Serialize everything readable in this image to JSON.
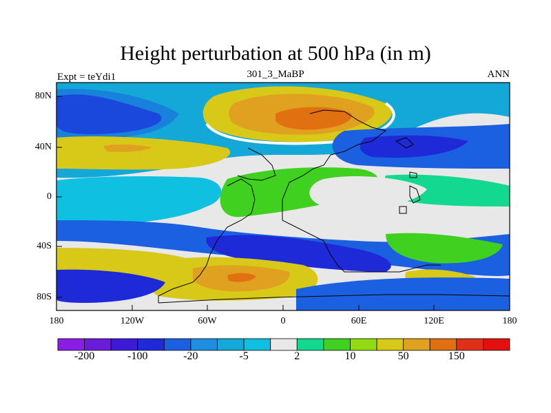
{
  "title": "Height perturbation at 500 hPa (in m)",
  "left_label": "Expt = teYdi1",
  "center_label": "301_3_MaBP",
  "right_label": "ANN",
  "y_ticks": [
    "80N",
    "40N",
    "0",
    "40S",
    "80S"
  ],
  "x_ticks": [
    "180",
    "120W",
    "60W",
    "0",
    "60E",
    "120E",
    "180"
  ],
  "colorbar": {
    "colors": [
      "#8a1ee6",
      "#6a1cd8",
      "#3c1ad6",
      "#1e2ad8",
      "#1a60e0",
      "#1e8ee0",
      "#14a8d8",
      "#10c0e0",
      "#e8e8e8",
      "#12d890",
      "#40d020",
      "#90dc10",
      "#d8c818",
      "#e0a020",
      "#e07010",
      "#e03018",
      "#e41010"
    ],
    "labels": [
      {
        "text": "-200",
        "after_box": 1
      },
      {
        "text": "-100",
        "after_box": 3
      },
      {
        "text": "-20",
        "after_box": 5
      },
      {
        "text": "-5",
        "after_box": 7
      },
      {
        "text": "2",
        "after_box": 9
      },
      {
        "text": "10",
        "after_box": 11
      },
      {
        "text": "50",
        "after_box": 13
      },
      {
        "text": "150",
        "after_box": 15
      }
    ]
  }
}
